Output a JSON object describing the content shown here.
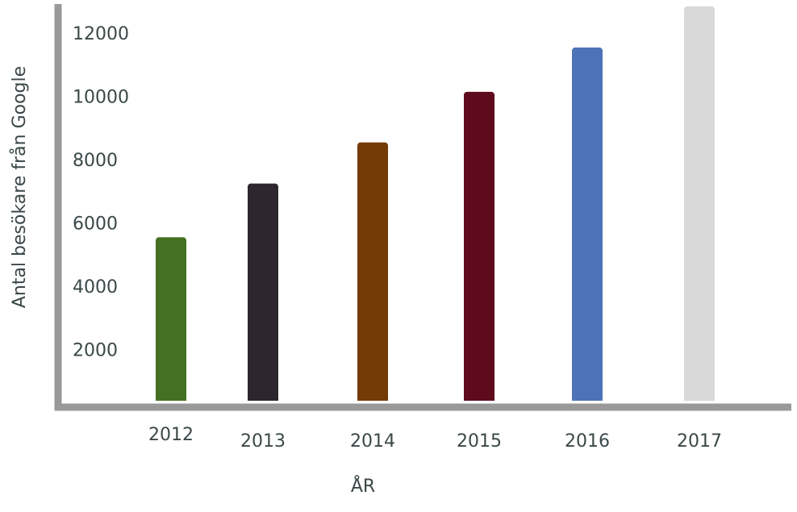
{
  "chart_data": {
    "type": "bar",
    "x_label": "ÅR",
    "y_label": "Antal besökare från Google",
    "categories": [
      "2012",
      "2013",
      "2014",
      "2015",
      "2016",
      "2017"
    ],
    "values": [
      5600,
      7300,
      8600,
      10200,
      11600,
      12900
    ],
    "colors": [
      "#437022",
      "#2e262e",
      "#733b06",
      "#5e0b1e",
      "#4e72b8",
      "#d9d9d9"
    ],
    "ylim": [
      0,
      13000
    ],
    "yticks": [
      2000,
      4000,
      6000,
      8000,
      10000,
      12000
    ],
    "grid": false
  }
}
